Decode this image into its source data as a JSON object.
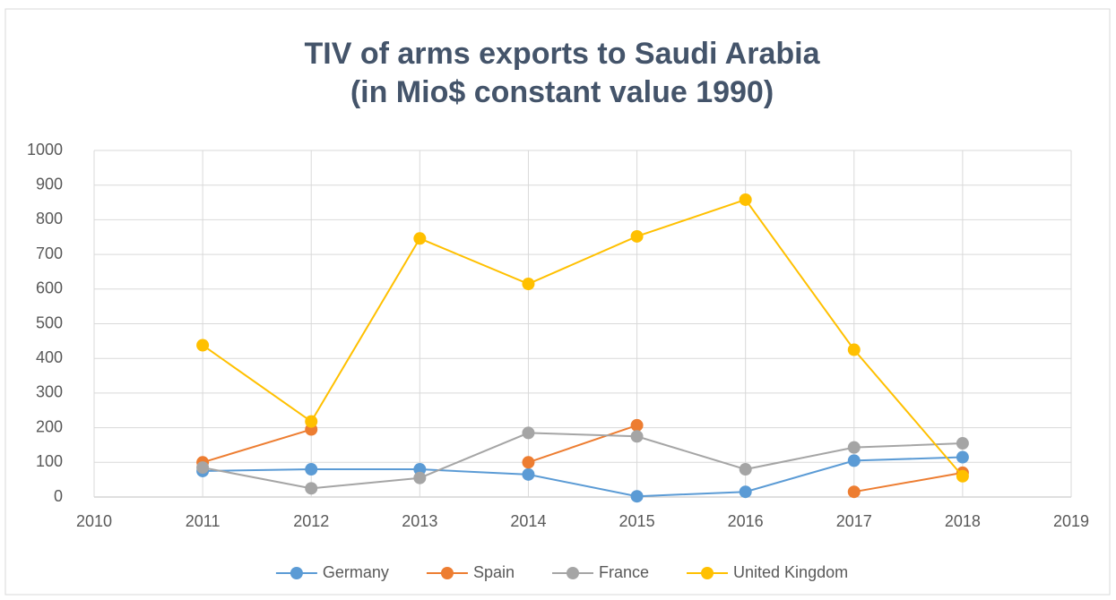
{
  "chart_data": {
    "type": "line",
    "title": [
      "TIV of arms exports to Saudi Arabia",
      "(in Mio$ constant value 1990)"
    ],
    "x": [
      2011,
      2012,
      2013,
      2014,
      2015,
      2016,
      2017,
      2018
    ],
    "series": [
      {
        "name": "Germany",
        "color": "#5b9bd5",
        "values": [
          75,
          80,
          80,
          65,
          2,
          15,
          105,
          115
        ]
      },
      {
        "name": "Spain",
        "color": "#ed7d31",
        "values": [
          100,
          195,
          null,
          100,
          207,
          null,
          15,
          70
        ]
      },
      {
        "name": "France",
        "color": "#a5a5a5",
        "values": [
          85,
          25,
          55,
          185,
          175,
          80,
          143,
          155
        ]
      },
      {
        "name": "United Kingdom",
        "color": "#ffc000",
        "values": [
          438,
          218,
          746,
          615,
          752,
          858,
          425,
          60
        ]
      }
    ],
    "xlim": [
      2010,
      2019
    ],
    "xticks": [
      2010,
      2011,
      2012,
      2013,
      2014,
      2015,
      2016,
      2017,
      2018,
      2019
    ],
    "ylim": [
      0,
      1000
    ],
    "yticks": [
      0,
      100,
      200,
      300,
      400,
      500,
      600,
      700,
      800,
      900,
      1000
    ],
    "grid": true,
    "legend": "bottom"
  }
}
